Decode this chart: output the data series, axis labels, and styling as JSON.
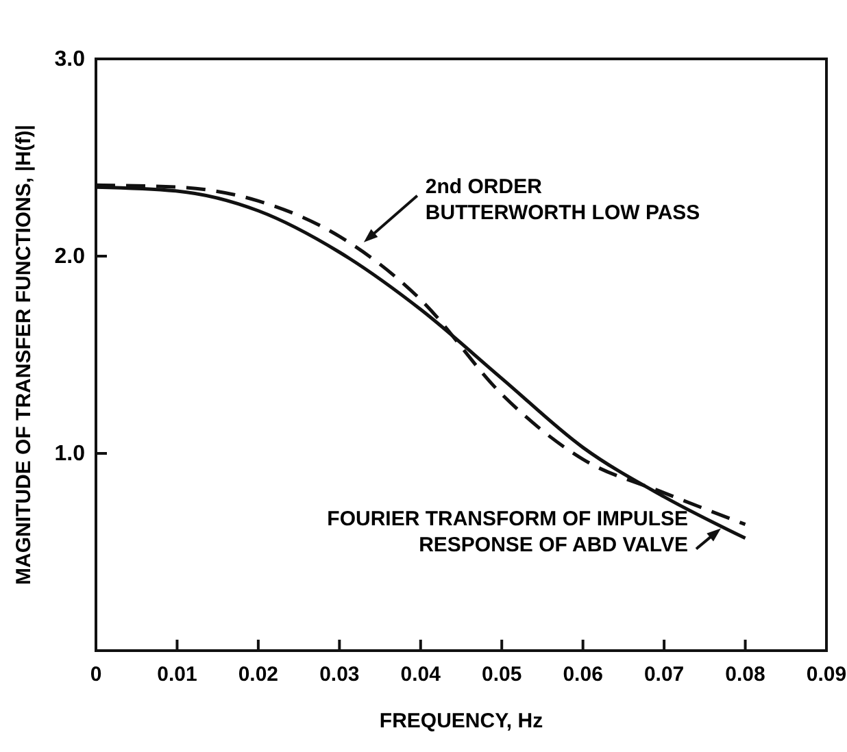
{
  "chart_data": {
    "type": "line",
    "xlabel": "FREQUENCY, Hz",
    "ylabel": "MAGNITUDE OF TRANSFER FUNCTIONS, |H(f)|",
    "xlim": [
      0,
      0.09
    ],
    "xticks": [
      {
        "value": 0,
        "label": "0"
      },
      0.01,
      0.02,
      0.03,
      0.04,
      0.05,
      0.06,
      0.07,
      0.08,
      0.09
    ],
    "ylim": [
      0,
      3
    ],
    "yticks": [
      {
        "value": 1,
        "label": "1.0"
      },
      {
        "value": 2,
        "label": "2.0"
      },
      {
        "value": 3,
        "label": "3.0"
      }
    ],
    "x": [
      0,
      0.01,
      0.02,
      0.03,
      0.04,
      0.05,
      0.06,
      0.07,
      0.08
    ],
    "series": [
      {
        "color": "#111111",
        "line_style": "solid",
        "values": [
          2.35,
          2.33,
          2.23,
          2.02,
          1.73,
          1.38,
          1.03,
          0.78,
          0.57
        ]
      },
      {
        "color": "#111111",
        "line_style": "dashed",
        "values": [
          2.36,
          2.35,
          2.28,
          2.1,
          1.78,
          1.3,
          0.97,
          0.8,
          0.64
        ]
      }
    ],
    "annotations": [
      {
        "text": "2nd ORDER\nBUTTERWORTH LOW PASS",
        "x": 0.033,
        "y": 2.07
      },
      {
        "text": "FOURIER TRANSFORM OF IMPULSE\nRESPONSE OF ABD  VALVE",
        "x": 0.077,
        "y": 0.62
      }
    ],
    "grid": false,
    "marker": "none"
  }
}
